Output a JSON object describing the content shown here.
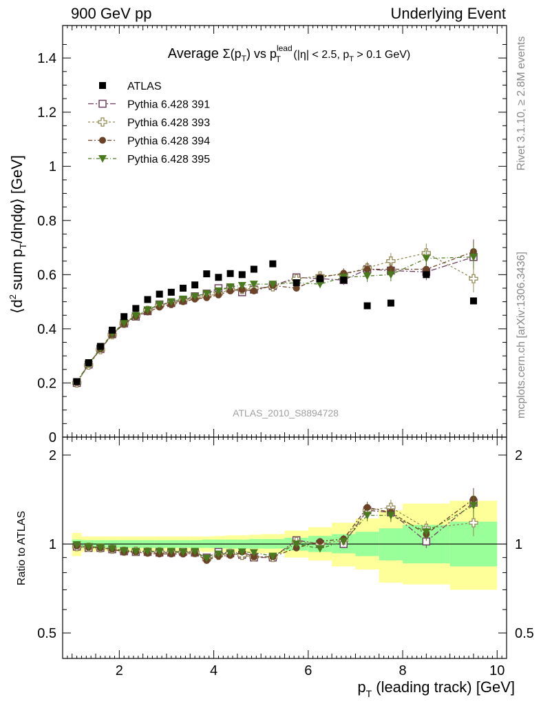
{
  "header": {
    "left": "900 GeV pp",
    "right": "Underlying Event"
  },
  "side_labels": {
    "top": "Rivet 3.1.10, ≥ 2.8M events",
    "bottom": "mcplots.cern.ch [arXiv:1306.3436]"
  },
  "watermark": "ATLAS_2010_S8894728",
  "chart_data": [
    {
      "type": "scatter",
      "title_parts": {
        "main": "Average ",
        "sigma": "Σ(p",
        "sigma_sub": "T",
        "vs": ") vs p",
        "lead_sup": "lead",
        "lead_sub": "T",
        "cut1": " (|η| < 2.5, p",
        "cut_sub": "T",
        "cut2": " > 0.1 GeV)"
      },
      "ylabel_parts": {
        "a": "⟨d",
        "a_sup": "2",
        "b": " sum p",
        "b_sub": "T",
        "c": "/dηdφ⟩ [GeV]"
      },
      "ylim": [
        0,
        1.52
      ],
      "xlim": [
        0.8,
        10.2
      ],
      "yticks": [
        {
          "v": 0,
          "label": "0"
        },
        {
          "v": 0.2,
          "label": "0.2"
        },
        {
          "v": 0.4,
          "label": "0.4"
        },
        {
          "v": 0.6,
          "label": "0.6"
        },
        {
          "v": 0.8,
          "label": "0.8"
        },
        {
          "v": 1.0,
          "label": "1"
        },
        {
          "v": 1.2,
          "label": "1.2"
        },
        {
          "v": 1.4,
          "label": "1.4"
        }
      ],
      "x": [
        1.1,
        1.35,
        1.6,
        1.85,
        2.1,
        2.35,
        2.6,
        2.85,
        3.1,
        3.35,
        3.6,
        3.85,
        4.1,
        4.35,
        4.6,
        4.85,
        5.25,
        5.75,
        6.25,
        6.75,
        7.25,
        7.75,
        8.5,
        9.5
      ],
      "data_series": {
        "name": "ATLAS",
        "values": [
          0.205,
          0.275,
          0.335,
          0.395,
          0.445,
          0.475,
          0.508,
          0.528,
          0.535,
          0.55,
          0.562,
          0.603,
          0.59,
          0.604,
          0.6,
          0.62,
          0.64,
          0.57,
          0.585,
          0.58,
          0.485,
          0.495,
          0.6,
          0.503
        ]
      },
      "series": [
        {
          "name": "Pythia 6.428 391",
          "color": "#6b3e5e",
          "marker": "open-square",
          "dash": "8,3,2,3",
          "values": [
            0.2,
            0.268,
            0.325,
            0.38,
            0.42,
            0.445,
            0.465,
            0.49,
            0.495,
            0.505,
            0.52,
            0.53,
            0.55,
            0.55,
            0.535,
            0.545,
            0.558,
            0.59,
            0.585,
            0.58,
            0.62,
            0.615,
            0.61,
            0.665
          ],
          "errors": [
            0.005,
            0.005,
            0.005,
            0.005,
            0.005,
            0.005,
            0.005,
            0.005,
            0.006,
            0.006,
            0.006,
            0.007,
            0.007,
            0.008,
            0.008,
            0.009,
            0.01,
            0.012,
            0.015,
            0.018,
            0.022,
            0.025,
            0.03,
            0.04
          ]
        },
        {
          "name": "Pythia 6.428 393",
          "color": "#948a54",
          "marker": "open-cross",
          "dash": "3,3",
          "values": [
            0.2,
            0.266,
            0.323,
            0.378,
            0.42,
            0.448,
            0.468,
            0.486,
            0.493,
            0.505,
            0.515,
            0.52,
            0.53,
            0.545,
            0.545,
            0.55,
            0.555,
            0.585,
            0.595,
            0.6,
            0.625,
            0.65,
            0.68,
            0.585
          ],
          "errors": [
            0.005,
            0.005,
            0.005,
            0.005,
            0.005,
            0.005,
            0.005,
            0.005,
            0.006,
            0.006,
            0.006,
            0.007,
            0.007,
            0.008,
            0.008,
            0.009,
            0.01,
            0.012,
            0.015,
            0.018,
            0.022,
            0.03,
            0.035,
            0.05
          ]
        },
        {
          "name": "Pythia 6.428 394",
          "color": "#6b4226",
          "marker": "filled-circle",
          "dash": "6,3,2,3",
          "values": [
            0.202,
            0.27,
            0.325,
            0.378,
            0.418,
            0.445,
            0.462,
            0.48,
            0.49,
            0.5,
            0.51,
            0.515,
            0.525,
            0.54,
            0.545,
            0.54,
            0.56,
            0.55,
            0.59,
            0.605,
            0.62,
            0.62,
            0.62,
            0.685
          ],
          "errors": [
            0.005,
            0.005,
            0.005,
            0.005,
            0.005,
            0.005,
            0.005,
            0.005,
            0.006,
            0.006,
            0.006,
            0.007,
            0.007,
            0.008,
            0.008,
            0.009,
            0.01,
            0.012,
            0.015,
            0.018,
            0.022,
            0.025,
            0.03,
            0.045
          ]
        },
        {
          "name": "Pythia 6.428 395",
          "color": "#4a7a1e",
          "marker": "filled-triangle-down",
          "dash": "5,3,1,3",
          "values": [
            0.205,
            0.27,
            0.328,
            0.382,
            0.422,
            0.448,
            0.47,
            0.49,
            0.5,
            0.51,
            0.52,
            0.53,
            0.54,
            0.555,
            0.56,
            0.565,
            0.565,
            0.57,
            0.565,
            0.59,
            0.595,
            0.6,
            0.66,
            0.665
          ],
          "errors": [
            0.005,
            0.005,
            0.005,
            0.005,
            0.005,
            0.005,
            0.005,
            0.005,
            0.006,
            0.006,
            0.006,
            0.007,
            0.007,
            0.008,
            0.008,
            0.009,
            0.01,
            0.012,
            0.015,
            0.018,
            0.022,
            0.025,
            0.03,
            0.045
          ]
        }
      ]
    },
    {
      "type": "scatter",
      "ylabel": "Ratio to ATLAS",
      "xlabel_parts": {
        "a": "p",
        "a_sub": "T",
        "b": " (leading track) [GeV]"
      },
      "ylim": [
        0.41,
        2.3
      ],
      "log_y": true,
      "xticks": [
        {
          "v": 2,
          "label": "2"
        },
        {
          "v": 4,
          "label": "4"
        },
        {
          "v": 6,
          "label": "6"
        },
        {
          "v": 8,
          "label": "8"
        },
        {
          "v": 10,
          "label": "10"
        }
      ],
      "yticks": [
        {
          "v": 0.5,
          "label": "0.5"
        },
        {
          "v": 1,
          "label": "1"
        },
        {
          "v": 2,
          "label": "2"
        }
      ],
      "uncertainty_bands": {
        "edges": [
          1.0,
          1.2,
          1.5,
          1.75,
          2.0,
          2.25,
          2.5,
          2.75,
          3.0,
          3.25,
          3.5,
          3.75,
          4.0,
          4.25,
          4.5,
          4.75,
          5.0,
          5.5,
          6.0,
          6.5,
          7.0,
          7.5,
          8.0,
          9.0,
          10.0
        ],
        "stat_low": [
          0.965,
          0.97,
          0.97,
          0.97,
          0.97,
          0.97,
          0.97,
          0.97,
          0.97,
          0.97,
          0.97,
          0.97,
          0.965,
          0.965,
          0.965,
          0.965,
          0.965,
          0.95,
          0.94,
          0.93,
          0.91,
          0.88,
          0.86,
          0.84
        ],
        "stat_high": [
          1.035,
          1.03,
          1.03,
          1.03,
          1.03,
          1.03,
          1.03,
          1.03,
          1.03,
          1.03,
          1.03,
          1.035,
          1.035,
          1.035,
          1.035,
          1.04,
          1.04,
          1.05,
          1.065,
          1.08,
          1.1,
          1.13,
          1.16,
          1.19
        ],
        "total_low": [
          0.91,
          0.94,
          0.945,
          0.945,
          0.945,
          0.945,
          0.945,
          0.945,
          0.945,
          0.945,
          0.945,
          0.94,
          0.94,
          0.94,
          0.935,
          0.93,
          0.93,
          0.9,
          0.88,
          0.84,
          0.82,
          0.74,
          0.73,
          0.7
        ],
        "total_high": [
          1.09,
          1.06,
          1.06,
          1.06,
          1.06,
          1.06,
          1.06,
          1.06,
          1.06,
          1.06,
          1.06,
          1.06,
          1.065,
          1.07,
          1.07,
          1.075,
          1.08,
          1.11,
          1.14,
          1.18,
          1.22,
          1.3,
          1.37,
          1.4
        ],
        "stat_color": "#99ff99",
        "total_color": "#ffff99"
      },
      "ratios": [
        {
          "name": "Pythia 6.428 391",
          "values": [
            0.98,
            0.97,
            0.97,
            0.96,
            0.945,
            0.94,
            0.94,
            0.935,
            0.935,
            0.94,
            0.935,
            0.9,
            0.94,
            0.93,
            0.92,
            0.9,
            0.9,
            1.03,
            1.0,
            1.0,
            1.3,
            1.28,
            1.02,
            1.38
          ]
        },
        {
          "name": "Pythia 6.428 393",
          "values": [
            0.98,
            0.975,
            0.97,
            0.96,
            0.945,
            0.945,
            0.94,
            0.94,
            0.935,
            0.935,
            0.935,
            0.89,
            0.915,
            0.93,
            0.915,
            0.905,
            0.9,
            1.02,
            1.0,
            1.03,
            1.3,
            1.33,
            1.13,
            1.18
          ]
        },
        {
          "name": "Pythia 6.428 394",
          "values": [
            0.985,
            0.975,
            0.97,
            0.96,
            0.94,
            0.94,
            0.93,
            0.925,
            0.925,
            0.925,
            0.93,
            0.88,
            0.91,
            0.915,
            0.94,
            0.905,
            0.905,
            0.97,
            1.02,
            1.04,
            1.33,
            1.28,
            1.08,
            1.42
          ]
        },
        {
          "name": "Pythia 6.428 395",
          "values": [
            0.995,
            0.98,
            0.975,
            0.965,
            0.95,
            0.945,
            0.945,
            0.945,
            0.945,
            0.94,
            0.945,
            0.895,
            0.925,
            0.93,
            0.94,
            0.935,
            0.91,
            1.0,
            0.965,
            1.02,
            1.25,
            1.25,
            1.1,
            1.35
          ]
        }
      ]
    }
  ]
}
